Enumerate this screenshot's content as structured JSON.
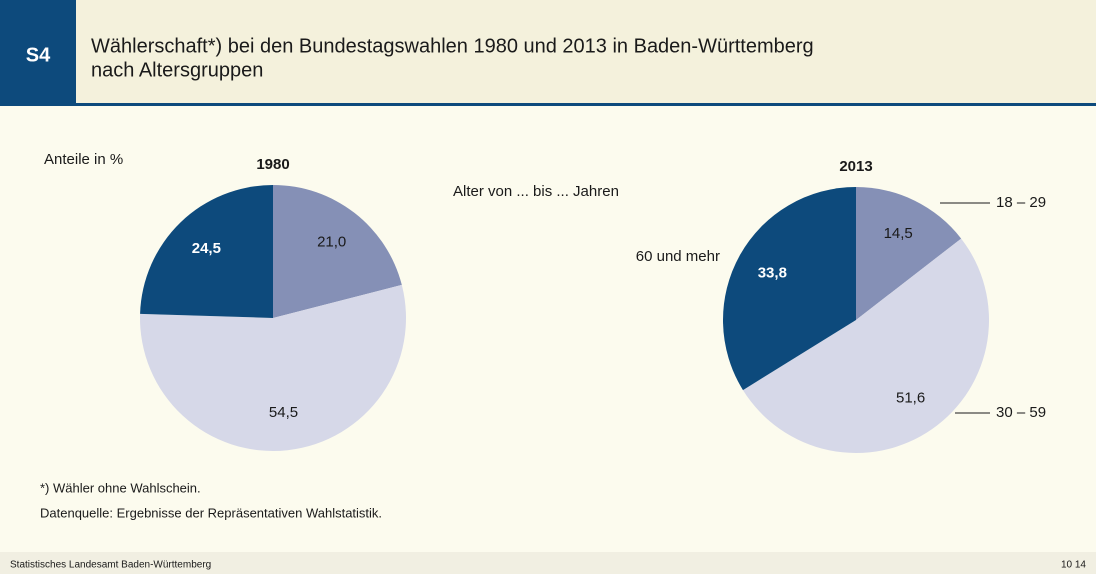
{
  "header": {
    "badge": "S4",
    "title": [
      "Wählerschaft*) bei den Bundestagswahlen 1980 und 2013 in Baden-Württemberg",
      "nach Altersgruppen"
    ]
  },
  "unit_label": "Anteile in %",
  "legend_title": "Alter von ... bis ... Jahren",
  "chart_data": [
    {
      "type": "pie",
      "title": "1980",
      "values": [
        21.0,
        54.5,
        24.5
      ],
      "value_labels": [
        "21,0",
        "54,5",
        "24,5"
      ],
      "colors": [
        "#8590b6",
        "#d6d8e8",
        "#0d4a7c"
      ]
    },
    {
      "type": "pie",
      "title": "2013",
      "categories": [
        "18 – 29",
        "30 – 59",
        "60 und mehr"
      ],
      "values": [
        14.5,
        51.6,
        33.8
      ],
      "value_labels": [
        "14,5",
        "51,6",
        "33,8"
      ],
      "colors": [
        "#8590b6",
        "#d6d8e8",
        "#0d4a7c"
      ]
    }
  ],
  "footnote": "*) Wähler ohne Wahlschein.",
  "source": "Datenquelle: Ergebnisse der Repräsentativen Wahlstatistik.",
  "footer": {
    "left": "Statistisches Landesamt Baden-Württemberg",
    "right": "10 14"
  }
}
